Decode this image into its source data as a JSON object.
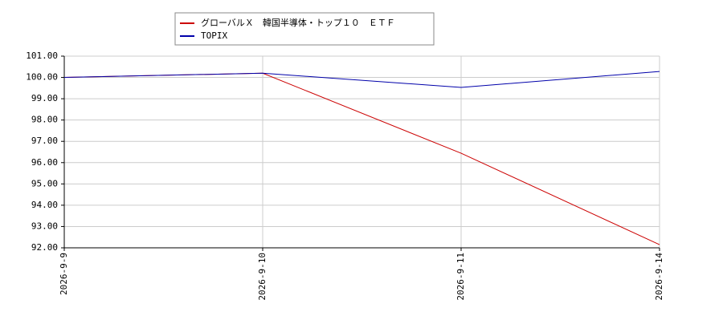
{
  "chart_data": {
    "type": "line",
    "categories": [
      "2026-9-9",
      "2026-9-10",
      "2026-9-11",
      "2026-9-14"
    ],
    "series": [
      {
        "name": "グローバルＸ　韓国半導体・トップ１０　ＥＴＦ",
        "color": "#cc0000",
        "values": [
          100.0,
          100.2,
          96.44,
          92.15
        ]
      },
      {
        "name": "TOPIX",
        "color": "#0000aa",
        "values": [
          100.0,
          100.2,
          99.53,
          100.28
        ]
      }
    ],
    "ylim": [
      92,
      101
    ],
    "yticks": [
      {
        "value": 92,
        "label": "92.00"
      },
      {
        "value": 93,
        "label": "93.00"
      },
      {
        "value": 94,
        "label": "94.00"
      },
      {
        "value": 95,
        "label": "95.00"
      },
      {
        "value": 96,
        "label": "96.00"
      },
      {
        "value": 97,
        "label": "97.00"
      },
      {
        "value": 98,
        "label": "98.00"
      },
      {
        "value": 99,
        "label": "99.00"
      },
      {
        "value": 100,
        "label": "100.00"
      },
      {
        "value": 101,
        "label": "101.00"
      }
    ],
    "grid": true,
    "legend": "top"
  }
}
